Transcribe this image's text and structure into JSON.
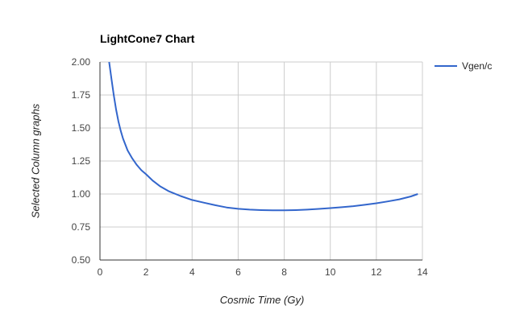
{
  "chart_data": {
    "type": "line",
    "title": "LightCone7 Chart",
    "xlabel": "Cosmic Time (Gy)",
    "ylabel": "Selected Column graphs",
    "xlim": [
      0,
      14
    ],
    "ylim": [
      0.5,
      2.0
    ],
    "x_ticks": [
      "0",
      "2",
      "4",
      "6",
      "8",
      "10",
      "12",
      "14"
    ],
    "y_ticks": [
      "0.50",
      "0.75",
      "1.00",
      "1.25",
      "1.50",
      "1.75",
      "2.00"
    ],
    "grid": true,
    "legend_position": "right",
    "series": [
      {
        "name": "Vgen/c",
        "color": "#3366cc",
        "x": [
          0.4,
          0.5,
          0.6,
          0.7,
          0.8,
          0.9,
          1.0,
          1.2,
          1.4,
          1.6,
          1.8,
          2.0,
          2.3,
          2.6,
          3.0,
          3.5,
          4.0,
          4.5,
          5.0,
          5.5,
          6.0,
          6.5,
          7.0,
          7.5,
          8.0,
          8.5,
          9.0,
          9.5,
          10.0,
          10.5,
          11.0,
          11.5,
          12.0,
          12.5,
          13.0,
          13.5,
          13.8
        ],
        "y": [
          2.0,
          1.87,
          1.75,
          1.64,
          1.55,
          1.48,
          1.42,
          1.33,
          1.27,
          1.22,
          1.18,
          1.15,
          1.1,
          1.06,
          1.02,
          0.985,
          0.955,
          0.935,
          0.915,
          0.898,
          0.888,
          0.882,
          0.878,
          0.876,
          0.876,
          0.878,
          0.882,
          0.887,
          0.893,
          0.9,
          0.908,
          0.918,
          0.93,
          0.944,
          0.96,
          0.982,
          1.0
        ]
      }
    ]
  }
}
